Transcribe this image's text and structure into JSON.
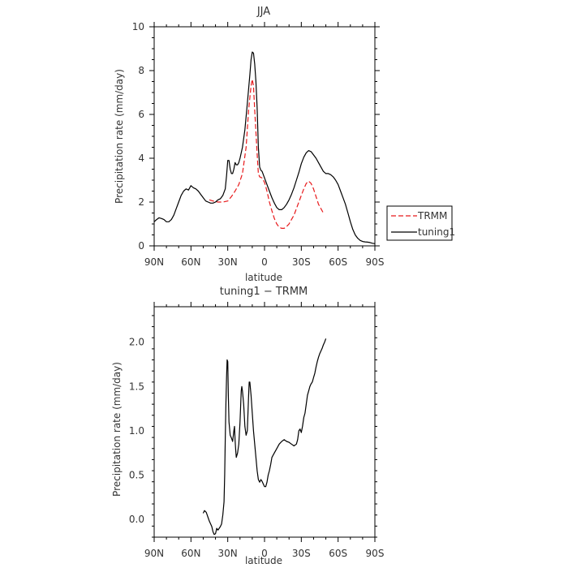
{
  "chart_data": [
    {
      "type": "line",
      "title": "JJA",
      "xlabel": "latitude",
      "ylabel": "Precipitation rate (mm/day)",
      "xlim": [
        90,
        -90
      ],
      "ylim": [
        0,
        10
      ],
      "x_ticks": [
        90,
        60,
        30,
        0,
        -30,
        -60,
        -90
      ],
      "x_tick_labels": [
        "90N",
        "60N",
        "30N",
        "0",
        "30S",
        "60S",
        "90S"
      ],
      "y_ticks": [
        0,
        2,
        4,
        6,
        8,
        10
      ],
      "y_tick_labels": [
        "0",
        "2",
        "4",
        "6",
        "8",
        "10"
      ],
      "legend_position": "outside-right",
      "grid": false,
      "series": [
        {
          "name": "TRMM",
          "color": "#e8191b",
          "style": "dashed",
          "points": [
            [
              45,
              2.1
            ],
            [
              42,
              2.05
            ],
            [
              38,
              2.0
            ],
            [
              34,
              2.0
            ],
            [
              30,
              2.05
            ],
            [
              27,
              2.25
            ],
            [
              24,
              2.5
            ],
            [
              21,
              2.8
            ],
            [
              18,
              3.3
            ],
            [
              15,
              4.5
            ],
            [
              13,
              6.2
            ],
            [
              11,
              7.3
            ],
            [
              10,
              7.6
            ],
            [
              9,
              7.3
            ],
            [
              8,
              6.2
            ],
            [
              6,
              4.2
            ],
            [
              5,
              3.3
            ],
            [
              4,
              3.15
            ],
            [
              2,
              3.1
            ],
            [
              0,
              2.9
            ],
            [
              -2,
              2.5
            ],
            [
              -4,
              2.0
            ],
            [
              -6,
              1.6
            ],
            [
              -8,
              1.25
            ],
            [
              -10,
              1.0
            ],
            [
              -12,
              0.85
            ],
            [
              -14,
              0.8
            ],
            [
              -16,
              0.8
            ],
            [
              -18,
              0.88
            ],
            [
              -20,
              1.0
            ],
            [
              -22,
              1.2
            ],
            [
              -24,
              1.4
            ],
            [
              -26,
              1.7
            ],
            [
              -28,
              2.0
            ],
            [
              -30,
              2.3
            ],
            [
              -32,
              2.6
            ],
            [
              -34,
              2.85
            ],
            [
              -36,
              2.95
            ],
            [
              -38,
              2.85
            ],
            [
              -40,
              2.6
            ],
            [
              -42,
              2.25
            ],
            [
              -44,
              1.9
            ],
            [
              -46,
              1.7
            ],
            [
              -48,
              1.5
            ]
          ]
        },
        {
          "name": "tuning1",
          "color": "#000000",
          "style": "solid",
          "points": [
            [
              90,
              1.1
            ],
            [
              88,
              1.2
            ],
            [
              86,
              1.28
            ],
            [
              84,
              1.25
            ],
            [
              82,
              1.2
            ],
            [
              80,
              1.1
            ],
            [
              78,
              1.1
            ],
            [
              76,
              1.2
            ],
            [
              74,
              1.4
            ],
            [
              72,
              1.7
            ],
            [
              70,
              2.0
            ],
            [
              68,
              2.3
            ],
            [
              66,
              2.5
            ],
            [
              64,
              2.6
            ],
            [
              62,
              2.55
            ],
            [
              60,
              2.75
            ],
            [
              58,
              2.65
            ],
            [
              56,
              2.6
            ],
            [
              54,
              2.5
            ],
            [
              52,
              2.35
            ],
            [
              50,
              2.2
            ],
            [
              48,
              2.05
            ],
            [
              46,
              2.0
            ],
            [
              44,
              1.95
            ],
            [
              42,
              1.95
            ],
            [
              40,
              2.0
            ],
            [
              38,
              2.1
            ],
            [
              36,
              2.15
            ],
            [
              34,
              2.3
            ],
            [
              32,
              2.6
            ],
            [
              31,
              3.2
            ],
            [
              30,
              3.9
            ],
            [
              29,
              3.9
            ],
            [
              28,
              3.5
            ],
            [
              27,
              3.3
            ],
            [
              26,
              3.3
            ],
            [
              25,
              3.5
            ],
            [
              24,
              3.8
            ],
            [
              23,
              3.7
            ],
            [
              22,
              3.7
            ],
            [
              21,
              3.8
            ],
            [
              20,
              4.0
            ],
            [
              18,
              4.5
            ],
            [
              16,
              5.3
            ],
            [
              14,
              6.5
            ],
            [
              12,
              7.8
            ],
            [
              11,
              8.5
            ],
            [
              10,
              8.85
            ],
            [
              9,
              8.8
            ],
            [
              8,
              8.3
            ],
            [
              7,
              7.5
            ],
            [
              6,
              6.3
            ],
            [
              5,
              4.5
            ],
            [
              4,
              3.6
            ],
            [
              3,
              3.45
            ],
            [
              2,
              3.4
            ],
            [
              0,
              3.1
            ],
            [
              -2,
              2.8
            ],
            [
              -4,
              2.5
            ],
            [
              -6,
              2.2
            ],
            [
              -8,
              1.95
            ],
            [
              -10,
              1.75
            ],
            [
              -12,
              1.65
            ],
            [
              -14,
              1.65
            ],
            [
              -16,
              1.75
            ],
            [
              -18,
              1.9
            ],
            [
              -20,
              2.1
            ],
            [
              -22,
              2.35
            ],
            [
              -24,
              2.65
            ],
            [
              -26,
              3.0
            ],
            [
              -28,
              3.35
            ],
            [
              -30,
              3.75
            ],
            [
              -32,
              4.05
            ],
            [
              -34,
              4.25
            ],
            [
              -36,
              4.35
            ],
            [
              -38,
              4.3
            ],
            [
              -40,
              4.15
            ],
            [
              -42,
              4.0
            ],
            [
              -44,
              3.8
            ],
            [
              -46,
              3.6
            ],
            [
              -48,
              3.4
            ],
            [
              -50,
              3.3
            ],
            [
              -52,
              3.3
            ],
            [
              -54,
              3.25
            ],
            [
              -56,
              3.15
            ],
            [
              -58,
              3.0
            ],
            [
              -60,
              2.8
            ],
            [
              -62,
              2.5
            ],
            [
              -64,
              2.2
            ],
            [
              -66,
              1.9
            ],
            [
              -68,
              1.5
            ],
            [
              -70,
              1.1
            ],
            [
              -72,
              0.75
            ],
            [
              -74,
              0.5
            ],
            [
              -76,
              0.35
            ],
            [
              -78,
              0.25
            ],
            [
              -80,
              0.2
            ],
            [
              -82,
              0.18
            ],
            [
              -84,
              0.17
            ],
            [
              -86,
              0.15
            ],
            [
              -88,
              0.12
            ],
            [
              -90,
              0.1
            ]
          ]
        }
      ]
    },
    {
      "type": "line",
      "title": "tuning1 − TRMM",
      "xlabel": "latitude",
      "ylabel": "Precipitation rate (mm/day)",
      "xlim": [
        90,
        -90
      ],
      "ylim": [
        -0.2,
        2.4
      ],
      "x_ticks": [
        90,
        60,
        30,
        0,
        -30,
        -60,
        -90
      ],
      "x_tick_labels": [
        "90N",
        "60N",
        "30N",
        "0",
        "30S",
        "60S",
        "90S"
      ],
      "y_ticks": [
        0.0,
        0.5,
        1.0,
        1.5,
        2.0
      ],
      "y_tick_labels": [
        "0.0",
        "0.5",
        "1.0",
        "1.5",
        "2.0"
      ],
      "grid": false,
      "series": [
        {
          "color": "#000000",
          "style": "solid",
          "points": [
            [
              50,
              0.07
            ],
            [
              49,
              0.1
            ],
            [
              47.5,
              0.08
            ],
            [
              46,
              0.02
            ],
            [
              45,
              -0.02
            ],
            [
              43,
              -0.08
            ],
            [
              42,
              -0.14
            ],
            [
              41,
              -0.17
            ],
            [
              40,
              -0.16
            ],
            [
              39,
              -0.1
            ],
            [
              38,
              -0.12
            ],
            [
              37,
              -0.1
            ],
            [
              36,
              -0.08
            ],
            [
              35,
              -0.05
            ],
            [
              34,
              0.05
            ],
            [
              33,
              0.2
            ],
            [
              32.5,
              0.5
            ],
            [
              32,
              0.9
            ],
            [
              31.5,
              1.3
            ],
            [
              31,
              1.6
            ],
            [
              30.5,
              1.8
            ],
            [
              30,
              1.78
            ],
            [
              29.5,
              1.4
            ],
            [
              29,
              1.1
            ],
            [
              28,
              0.95
            ],
            [
              27,
              0.92
            ],
            [
              26,
              0.88
            ],
            [
              25,
              1.0
            ],
            [
              24.5,
              1.05
            ],
            [
              24,
              0.9
            ],
            [
              23.5,
              0.78
            ],
            [
              23,
              0.7
            ],
            [
              22,
              0.75
            ],
            [
              21,
              0.85
            ],
            [
              20,
              1.1
            ],
            [
              19,
              1.45
            ],
            [
              18.5,
              1.5
            ],
            [
              18,
              1.45
            ],
            [
              17,
              1.3
            ],
            [
              16,
              1.05
            ],
            [
              15,
              0.95
            ],
            [
              14,
              1.0
            ],
            [
              13,
              1.4
            ],
            [
              12.5,
              1.55
            ],
            [
              12,
              1.55
            ],
            [
              11,
              1.4
            ],
            [
              10,
              1.2
            ],
            [
              9,
              1.0
            ],
            [
              8,
              0.85
            ],
            [
              7,
              0.7
            ],
            [
              6,
              0.55
            ],
            [
              5,
              0.45
            ],
            [
              4,
              0.42
            ],
            [
              3,
              0.45
            ],
            [
              2,
              0.43
            ],
            [
              1,
              0.4
            ],
            [
              0,
              0.37
            ],
            [
              -1,
              0.37
            ],
            [
              -2,
              0.42
            ],
            [
              -3,
              0.5
            ],
            [
              -4,
              0.55
            ],
            [
              -5,
              0.62
            ],
            [
              -6,
              0.7
            ],
            [
              -8,
              0.75
            ],
            [
              -10,
              0.8
            ],
            [
              -12,
              0.85
            ],
            [
              -14,
              0.88
            ],
            [
              -16,
              0.9
            ],
            [
              -18,
              0.88
            ],
            [
              -20,
              0.87
            ],
            [
              -22,
              0.85
            ],
            [
              -24,
              0.83
            ],
            [
              -26,
              0.85
            ],
            [
              -27,
              0.9
            ],
            [
              -28,
              1.0
            ],
            [
              -29,
              1.02
            ],
            [
              -30,
              0.98
            ],
            [
              -31,
              1.05
            ],
            [
              -32,
              1.15
            ],
            [
              -33,
              1.2
            ],
            [
              -34,
              1.3
            ],
            [
              -35,
              1.4
            ],
            [
              -36,
              1.45
            ],
            [
              -37,
              1.5
            ],
            [
              -38,
              1.53
            ],
            [
              -39,
              1.55
            ],
            [
              -40,
              1.6
            ],
            [
              -41,
              1.65
            ],
            [
              -42,
              1.72
            ],
            [
              -43,
              1.78
            ],
            [
              -44,
              1.83
            ],
            [
              -45,
              1.87
            ],
            [
              -46,
              1.9
            ],
            [
              -47,
              1.93
            ],
            [
              -48,
              1.97
            ],
            [
              -49,
              2.0
            ],
            [
              -50,
              2.04
            ]
          ]
        }
      ]
    }
  ]
}
